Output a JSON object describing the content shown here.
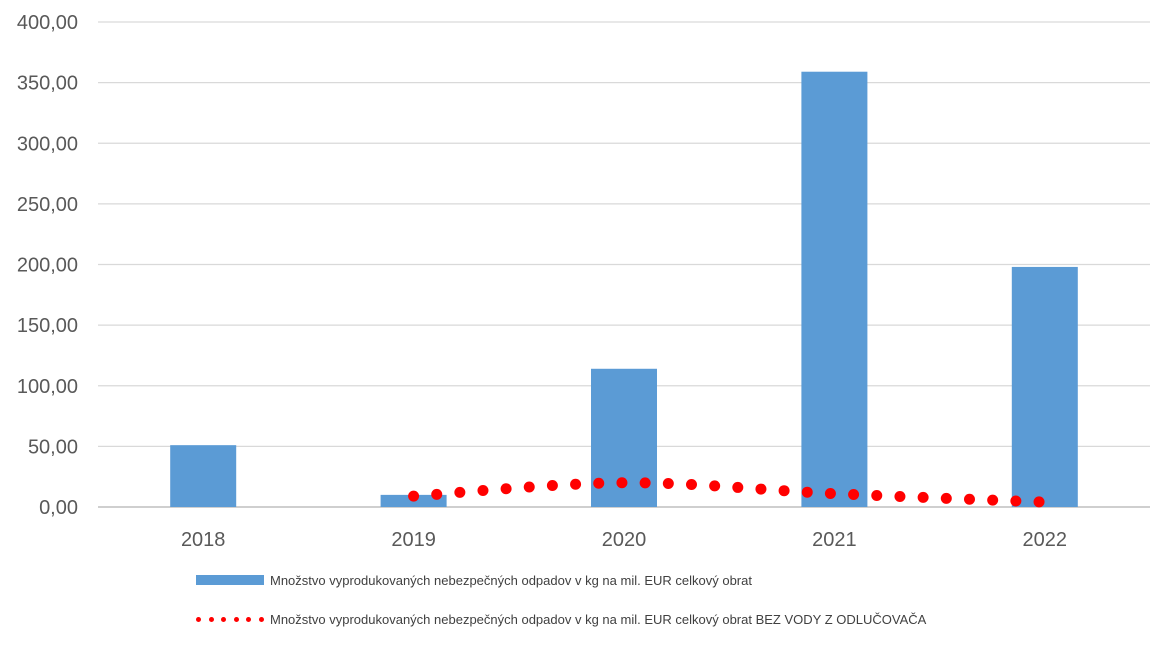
{
  "chart_data": {
    "type": "bar",
    "categories": [
      "2018",
      "2019",
      "2020",
      "2021",
      "2022"
    ],
    "series": [
      {
        "name": "Množstvo vyprodukovaných nebezpečných odpadov v kg na mil. EUR celkový obrat",
        "type": "bar",
        "color": "#5b9bd5",
        "values": [
          51,
          10,
          114,
          359,
          198
        ]
      },
      {
        "name": "Množstvo vyprodukovaných nebezpečných odpadov v kg na mil. EUR celkový obrat BEZ VODY Z ODLUČOVAČA",
        "type": "line",
        "style": "dotted",
        "color": "#ff0000",
        "values": [
          null,
          9,
          20,
          11,
          4
        ]
      }
    ],
    "ylim": [
      0,
      400
    ],
    "yticks": [
      "0,00",
      "50,00",
      "100,00",
      "150,00",
      "200,00",
      "250,00",
      "300,00",
      "350,00",
      "400,00"
    ],
    "ytick_values": [
      0,
      50,
      100,
      150,
      200,
      250,
      300,
      350,
      400
    ],
    "grid": true,
    "legend_position": "bottom"
  }
}
